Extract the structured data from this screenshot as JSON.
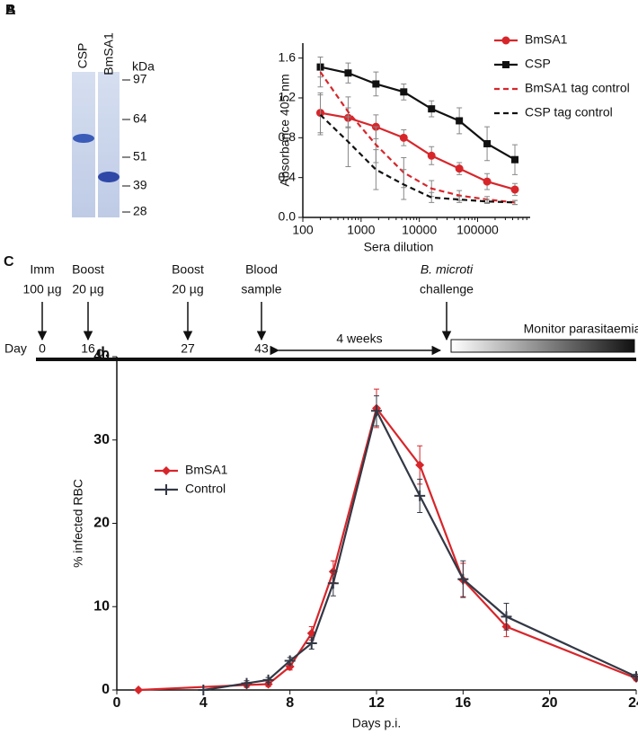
{
  "panel_a": {
    "label": "A",
    "lanes": [
      "CSP",
      "BmSA1"
    ],
    "unit": "kDa",
    "markers": [
      "97",
      "64",
      "51",
      "39",
      "28"
    ]
  },
  "panel_c": {
    "label": "C",
    "day_label": "Day",
    "interval": "4 weeks",
    "monitor": "Monitor parasitaemia",
    "events": [
      {
        "lines": [
          "Imm",
          "100 µg"
        ],
        "day": "0"
      },
      {
        "lines": [
          "Boost",
          "20 µg"
        ],
        "day": "16"
      },
      {
        "lines": [
          "Boost",
          "20 µg"
        ],
        "day": "27"
      },
      {
        "lines": [
          "Blood",
          "sample"
        ],
        "day": "43"
      },
      {
        "lines": [
          "B. microti",
          "challenge"
        ]
      }
    ]
  },
  "chart_data": [
    {
      "type": "line",
      "panel_label": "B",
      "xlabel": "Sera dilution",
      "ylabel": "Absorbance 405 nm",
      "xscale": "log",
      "x": [
        200,
        600,
        1800,
        5400,
        16200,
        48600,
        145800,
        437400
      ],
      "xlim": [
        100,
        800000
      ],
      "xticks": [
        100,
        1000,
        10000,
        100000
      ],
      "ylim": [
        0,
        1.75
      ],
      "yticks": [
        {
          "value": 0,
          "label": "0.0"
        },
        0.4,
        0.8,
        1.2,
        1.6
      ],
      "legend": "top-right",
      "series": [
        {
          "name": "BmSA1",
          "color": "#d7262b",
          "marker": "circle",
          "dash": false,
          "values": [
            1.05,
            1.0,
            0.91,
            0.8,
            0.62,
            0.49,
            0.36,
            0.28
          ],
          "errors": [
            0.2,
            0.1,
            0.12,
            0.08,
            0.09,
            0.06,
            0.08,
            0.06
          ]
        },
        {
          "name": "CSP",
          "color": "#111111",
          "marker": "square",
          "dash": false,
          "values": [
            1.51,
            1.45,
            1.34,
            1.26,
            1.09,
            0.97,
            0.74,
            0.58
          ],
          "errors": [
            0.1,
            0.1,
            0.12,
            0.08,
            0.08,
            0.13,
            0.17,
            0.15
          ]
        },
        {
          "name": "BmSA1 tag control",
          "color": "#d7262b",
          "marker": "none",
          "dash": true,
          "values": [
            1.46,
            1.06,
            0.73,
            0.45,
            0.29,
            0.22,
            0.18,
            0.15
          ],
          "errors": [
            0.15,
            0.15,
            0.18,
            0.15,
            0.08,
            0.05,
            0.03,
            0.02
          ]
        },
        {
          "name": "CSP tag control",
          "color": "#111111",
          "marker": "none",
          "dash": true,
          "values": [
            1.03,
            0.76,
            0.48,
            0.33,
            0.2,
            0.18,
            0.16,
            0.15
          ],
          "errors": [
            0.2,
            0.25,
            0.2,
            0.15,
            0.05,
            0.03,
            0.02,
            0.02
          ]
        }
      ]
    },
    {
      "type": "line",
      "panel_label": "d.",
      "xlabel": "Days p.i.",
      "ylabel": "% infected RBC",
      "xscale": "linear",
      "xlim": [
        0,
        24
      ],
      "xticks": [
        0,
        4,
        8,
        12,
        16,
        20,
        24
      ],
      "ylim": [
        0,
        40
      ],
      "yticks": [
        0,
        10,
        20,
        30,
        40
      ],
      "legend": "center-left",
      "series": [
        {
          "name": "BmSA1",
          "color": "#d7262b",
          "marker": "diamond",
          "dash": false,
          "x": [
            1,
            6,
            7,
            8,
            9,
            10,
            12,
            14,
            16,
            18,
            24
          ],
          "values": [
            0,
            0.6,
            0.7,
            2.8,
            6.8,
            14.2,
            33.8,
            27.0,
            13.2,
            7.6,
            1.4
          ],
          "errors": [
            0,
            0.3,
            0.3,
            0.4,
            0.8,
            1.3,
            2.3,
            2.3,
            2.0,
            1.2,
            0.3
          ]
        },
        {
          "name": "Control",
          "color": "#333845",
          "marker": "plus",
          "dash": false,
          "x": [
            4,
            6,
            7,
            8,
            9,
            10,
            12,
            14,
            16,
            18,
            24
          ],
          "values": [
            0,
            0.8,
            1.2,
            3.5,
            5.6,
            12.8,
            33.5,
            23.3,
            13.3,
            8.8,
            1.6
          ],
          "errors": [
            0,
            0.3,
            0.3,
            0.4,
            0.7,
            1.5,
            1.8,
            2.0,
            2.2,
            1.6,
            0.3
          ]
        }
      ]
    }
  ]
}
